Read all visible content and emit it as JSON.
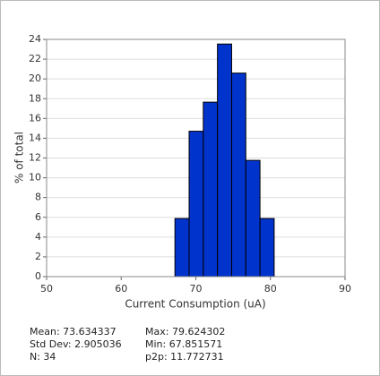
{
  "chart_data": {
    "type": "histogram",
    "xlabel": "Current Consumption (uA)",
    "ylabel": "% of total",
    "bins": [
      67.2,
      69.1,
      71.0,
      72.9,
      74.8,
      76.7,
      78.6,
      80.5
    ],
    "values": [
      5.88,
      14.71,
      17.65,
      23.53,
      20.59,
      11.76,
      5.88
    ],
    "color": "#0033cc",
    "xlim": [
      50,
      90
    ],
    "xticks": [
      50,
      60,
      70,
      80,
      90
    ],
    "ylim": [
      0,
      24
    ],
    "yticks": [
      0,
      2,
      4,
      6,
      8,
      10,
      12,
      14,
      16,
      18,
      20,
      22,
      24
    ],
    "grid": true
  },
  "stats": {
    "left": [
      "Mean: 73.634337",
      "Std Dev: 2.905036",
      "N: 34"
    ],
    "right": [
      "Max: 79.624302",
      "Min: 67.851571",
      "p2p: 11.772731"
    ]
  }
}
